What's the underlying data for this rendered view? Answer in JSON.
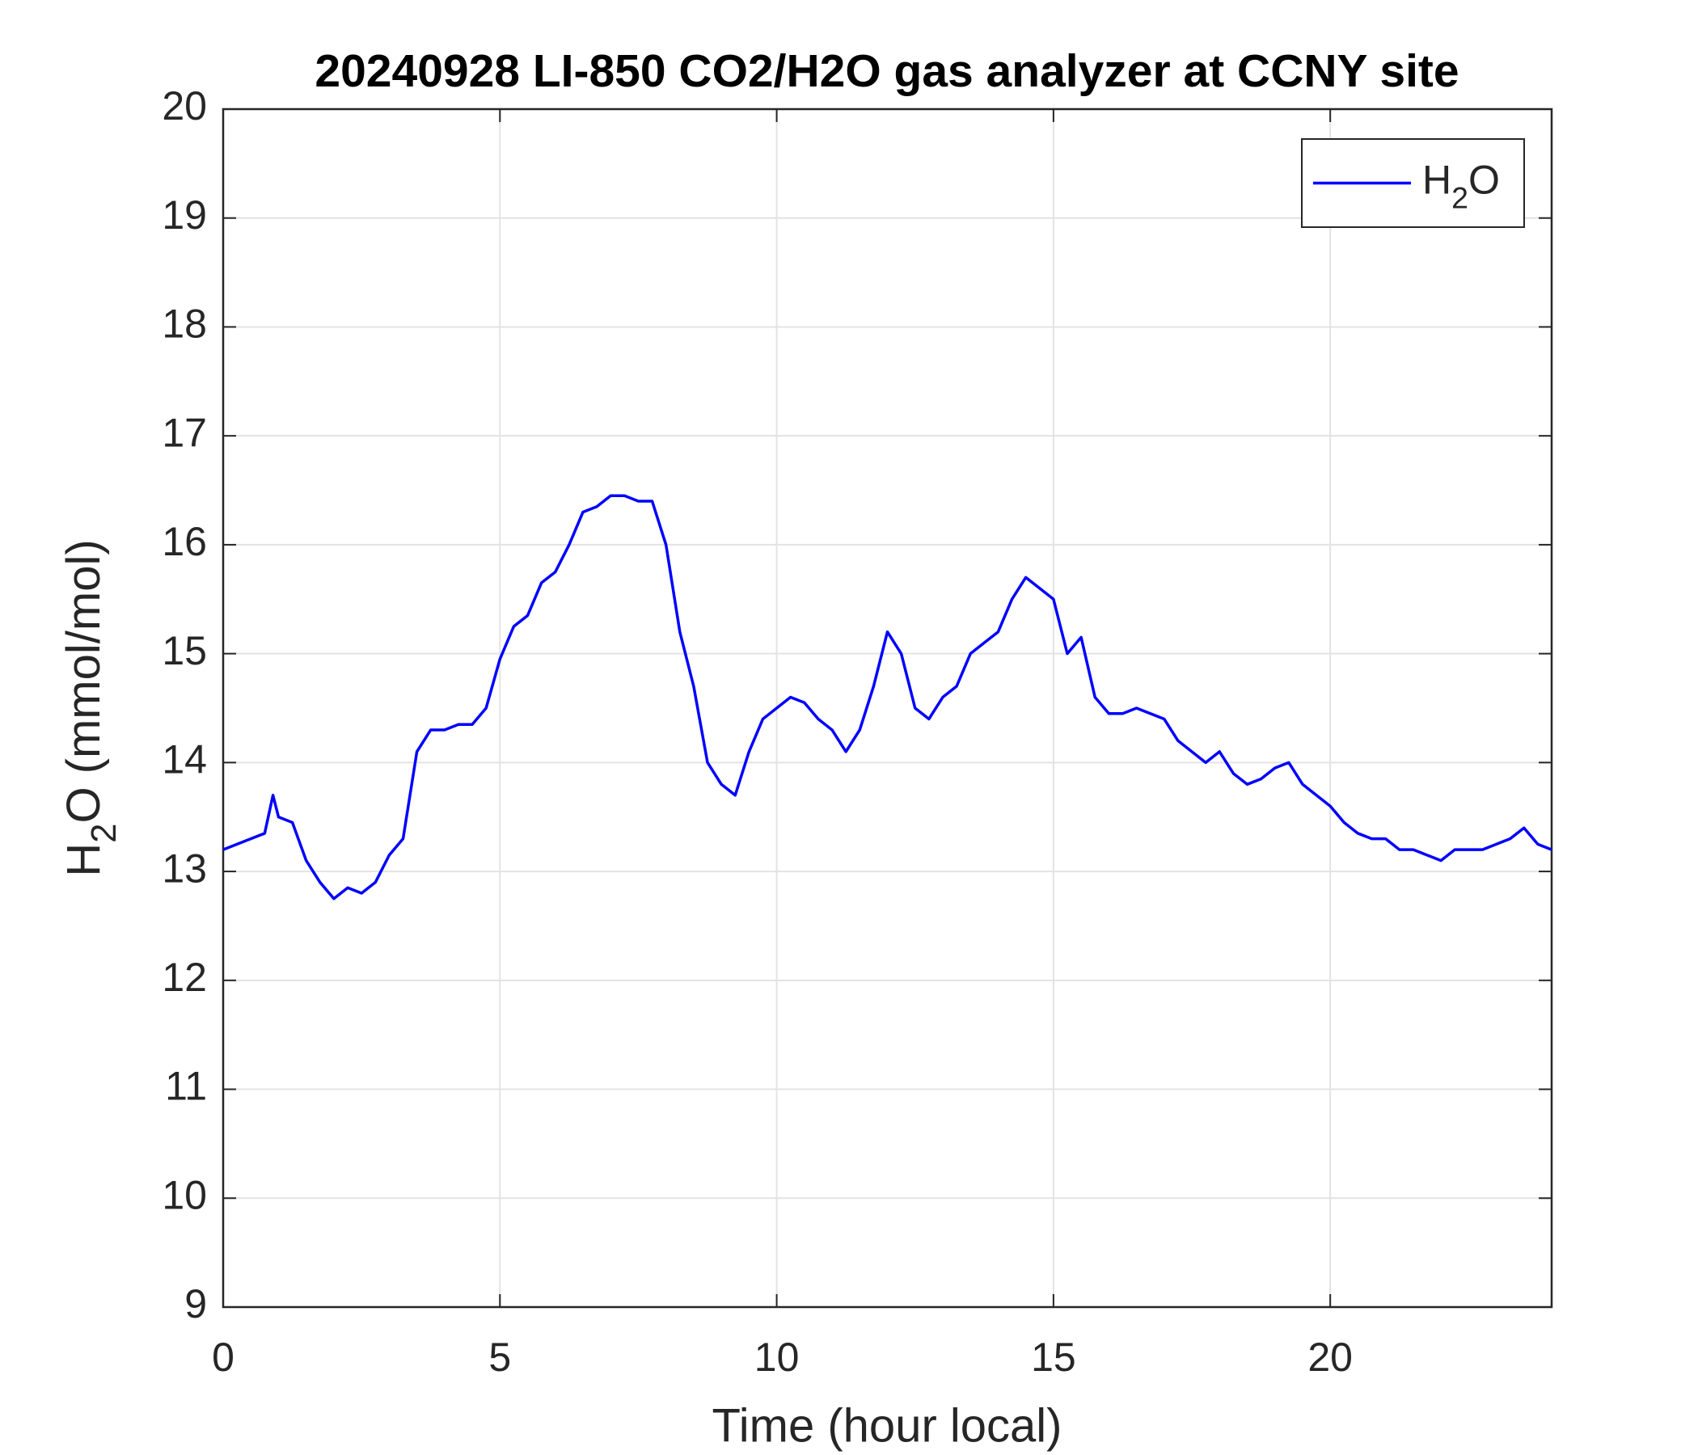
{
  "chart_data": {
    "type": "line",
    "title": "20240928 LI-850 CO2/H2O gas analyzer at CCNY site",
    "xlabel": "Time (hour local)",
    "ylabel": "H2O (mmol/mol)",
    "x": [
      0,
      0.25,
      0.5,
      0.75,
      0.9,
      1,
      1.25,
      1.5,
      1.75,
      2,
      2.25,
      2.5,
      2.75,
      3,
      3.25,
      3.5,
      3.75,
      4,
      4.25,
      4.5,
      4.75,
      5,
      5.25,
      5.5,
      5.75,
      6,
      6.25,
      6.5,
      6.75,
      7,
      7.25,
      7.5,
      7.75,
      8,
      8.25,
      8.5,
      8.75,
      9,
      9.25,
      9.5,
      9.75,
      10,
      10.25,
      10.5,
      10.75,
      11,
      11.25,
      11.5,
      11.75,
      12,
      12.25,
      12.5,
      12.75,
      13,
      13.25,
      13.5,
      13.75,
      14,
      14.25,
      14.5,
      14.75,
      15,
      15.25,
      15.5,
      15.75,
      16,
      16.25,
      16.5,
      16.75,
      17,
      17.25,
      17.5,
      17.75,
      18,
      18.25,
      18.5,
      18.75,
      19,
      19.25,
      19.5,
      19.75,
      20,
      20.25,
      20.5,
      20.75,
      21,
      21.25,
      21.5,
      21.75,
      22,
      22.25,
      22.5,
      22.75,
      23,
      23.25,
      23.5,
      23.75,
      24
    ],
    "series": [
      {
        "name": "H2O",
        "color": "#0000ff",
        "values": [
          13.2,
          13.25,
          13.3,
          13.35,
          13.7,
          13.5,
          13.45,
          13.1,
          12.9,
          12.75,
          12.85,
          12.8,
          12.9,
          13.15,
          13.3,
          14.1,
          14.3,
          14.3,
          14.35,
          14.35,
          14.5,
          14.95,
          15.25,
          15.35,
          15.65,
          15.75,
          16.0,
          16.3,
          16.35,
          16.45,
          16.45,
          16.4,
          16.4,
          16.0,
          15.2,
          14.7,
          14.0,
          13.8,
          13.7,
          14.1,
          14.4,
          14.5,
          14.6,
          14.55,
          14.4,
          14.3,
          14.1,
          14.3,
          14.7,
          15.2,
          15.0,
          14.5,
          14.4,
          14.6,
          14.7,
          15.0,
          15.1,
          15.2,
          15.5,
          15.7,
          15.6,
          15.5,
          15.0,
          15.15,
          14.6,
          14.45,
          14.45,
          14.5,
          14.45,
          14.4,
          14.2,
          14.1,
          14.0,
          14.1,
          13.9,
          13.8,
          13.85,
          13.95,
          14.0,
          13.8,
          13.7,
          13.6,
          13.45,
          13.35,
          13.3,
          13.3,
          13.2,
          13.2,
          13.15,
          13.1,
          13.2,
          13.2,
          13.2,
          13.25,
          13.3,
          13.4,
          13.25,
          13.2
        ]
      }
    ],
    "xlim": [
      0,
      24
    ],
    "xticks": [
      0,
      5,
      10,
      15,
      20
    ],
    "ylim": [
      9,
      20
    ],
    "yticks": [
      9,
      10,
      11,
      12,
      13,
      14,
      15,
      16,
      17,
      18,
      19,
      20
    ],
    "grid": true,
    "legend": "top-right"
  }
}
